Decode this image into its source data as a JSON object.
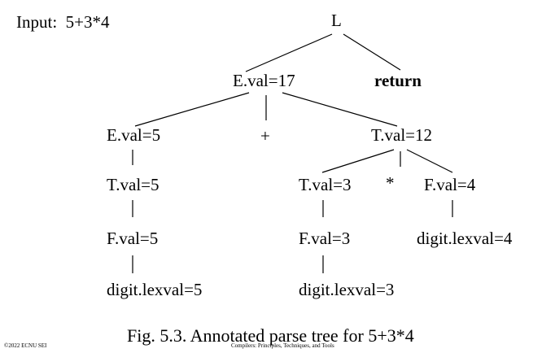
{
  "input": {
    "label": "Input:",
    "expr": "5+3*4"
  },
  "tree": {
    "root": "L",
    "e_val_17": "E.val=17",
    "return_kw": "return",
    "e_val_5": "E.val=5",
    "plus": "+",
    "t_val_12": "T.val=12",
    "t_val_5": "T.val=5",
    "t_val_3": "T.val=3",
    "times": "*",
    "f_val_4": "F.val=4",
    "f_val_5": "F.val=5",
    "f_val_3": "F.val=3",
    "digit_4": "digit.lexval=4",
    "digit_5": "digit.lexval=5",
    "digit_3": "digit.lexval=3"
  },
  "caption": "Fig. 5.3. Annotated parse tree for 5+3*4",
  "footer": {
    "copyright": "©2022 ECNU SEI",
    "course": "Compilers: Principles, Techniques, and Tools"
  }
}
